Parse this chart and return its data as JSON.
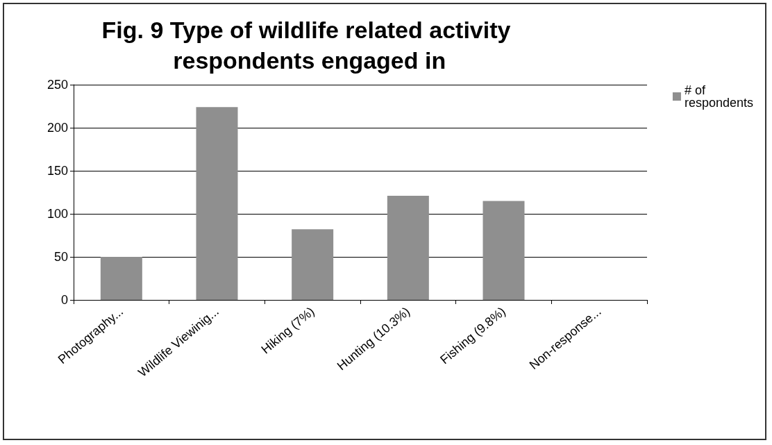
{
  "chart_data": {
    "type": "bar",
    "title": "Fig. 9 Type of wildlife related activity respondents engaged in",
    "categories": [
      "Photography...",
      "Wildlife Viewinig...",
      "Hiking (7%)",
      "Hunting (10.3%)",
      "Fishing (9.8%)",
      "Non-response..."
    ],
    "series": [
      {
        "name": "# of respondents",
        "color": "#8f8f8f",
        "values": [
          50,
          224,
          82,
          121,
          115,
          0
        ]
      }
    ],
    "ylim": [
      0,
      250
    ],
    "yticks": [
      0,
      50,
      100,
      150,
      200,
      250
    ],
    "grid": "y",
    "legend": "right"
  }
}
